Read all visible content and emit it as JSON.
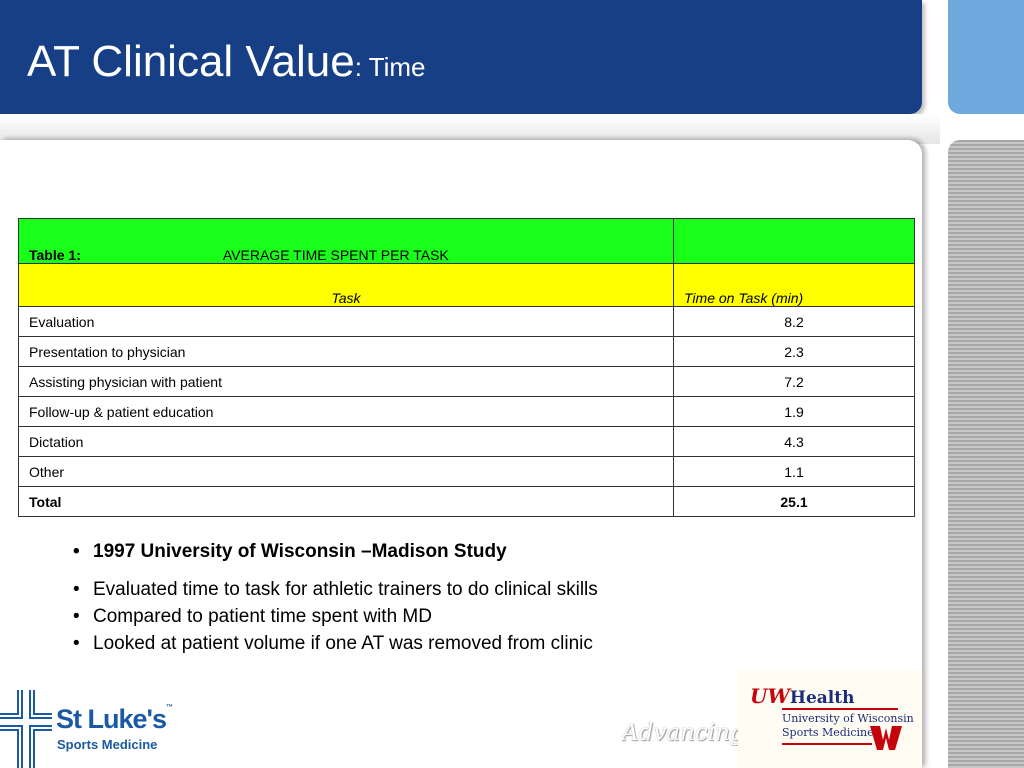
{
  "slide": {
    "title_main": "AT Clinical Value",
    "title_sub": ": Time"
  },
  "table": {
    "label": "Table 1:",
    "title": "AVERAGE TIME SPENT PER TASK",
    "col_task": "Task",
    "col_time": "Time on Task (min)",
    "rows": [
      {
        "task": "Evaluation",
        "time": "8.2"
      },
      {
        "task": "Presentation to physician",
        "time": "2.3"
      },
      {
        "task": "Assisting physician with patient",
        "time": "7.2"
      },
      {
        "task": "Follow-up & patient education",
        "time": "1.9"
      },
      {
        "task": "Dictation",
        "time": "4.3"
      },
      {
        "task": "Other",
        "time": "1.1"
      }
    ],
    "total_label": "Total",
    "total_value": "25.1"
  },
  "bullets": [
    "1997  University of Wisconsin –Madison Study",
    "Evaluated time to task for athletic trainers to do clinical skills",
    "Compared to patient time spent with MD",
    "Looked at patient volume if one AT was removed from clinic"
  ],
  "footer": {
    "left_logo_name": "St Luke's",
    "left_logo_tm": "™",
    "left_logo_sub": "Sports Medicine",
    "tagline": "Advancing w",
    "right_logo_mark": "UW",
    "right_logo_name": "Health",
    "right_logo_line1": "University of Wisconsin",
    "right_logo_line2": "Sports Medicine"
  },
  "colors": {
    "title_bar": "#173f86",
    "accent_blue": "#6fa8dc",
    "table_header_green": "#1aff1a",
    "table_header_yellow": "#ffff00",
    "logo_blue": "#1b5aa3",
    "uw_red": "#c5050c"
  }
}
